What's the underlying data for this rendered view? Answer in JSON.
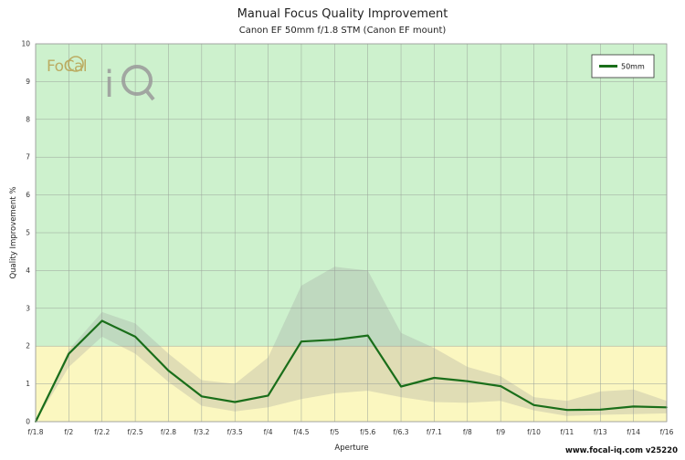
{
  "chart_data": {
    "type": "line",
    "title": "Manual Focus Quality Improvement",
    "subtitle": "Canon EF 50mm f/1.8 STM (Canon EF mount)",
    "xlabel": "Aperture",
    "ylabel": "Quality Improvement %",
    "categories": [
      "f/1.8",
      "f/2",
      "f/2.2",
      "f/2.5",
      "f/2.8",
      "f/3.2",
      "f/3.5",
      "f/4",
      "f/4.5",
      "f/5",
      "f/5.6",
      "f/6.3",
      "f/7.1",
      "f/8",
      "f/9",
      "f/10",
      "f/11",
      "f/13",
      "f/14",
      "f/16"
    ],
    "ylim": [
      0,
      10
    ],
    "yticks": [
      "0",
      "1",
      "2",
      "3",
      "4",
      "5",
      "6",
      "7",
      "8",
      "9",
      "10"
    ],
    "series": [
      {
        "name": "50mm",
        "color": "#1a6e1a",
        "values": [
          0.0,
          1.8,
          2.67,
          2.25,
          1.35,
          0.67,
          0.52,
          0.69,
          2.12,
          2.17,
          2.28,
          0.93,
          1.16,
          1.07,
          0.94,
          0.44,
          0.31,
          0.32,
          0.4,
          0.38
        ],
        "range_upper": [
          0.0,
          1.9,
          2.9,
          2.6,
          1.8,
          1.1,
          1.0,
          1.7,
          3.6,
          4.1,
          4.0,
          2.35,
          1.95,
          1.45,
          1.2,
          0.65,
          0.55,
          0.8,
          0.85,
          0.55
        ],
        "range_lower": [
          0.0,
          1.45,
          2.25,
          1.8,
          1.05,
          0.42,
          0.27,
          0.38,
          0.6,
          0.75,
          0.82,
          0.65,
          0.52,
          0.5,
          0.55,
          0.3,
          0.15,
          0.18,
          0.2,
          0.22
        ]
      }
    ],
    "bands": [
      {
        "from": 0,
        "to": 2,
        "color": "#fbf7c0"
      },
      {
        "from": 2,
        "to": 10,
        "color": "#cdf1cd"
      }
    ],
    "range_fill_color": "#9c9c9c",
    "grid": true,
    "legend_position": "top-right"
  },
  "logo": {
    "text": "FoCal iQ",
    "colors": [
      "#b8a050",
      "#9a9a9a"
    ]
  },
  "footer": {
    "watermark": "www.focal-iq.com  v25220"
  }
}
